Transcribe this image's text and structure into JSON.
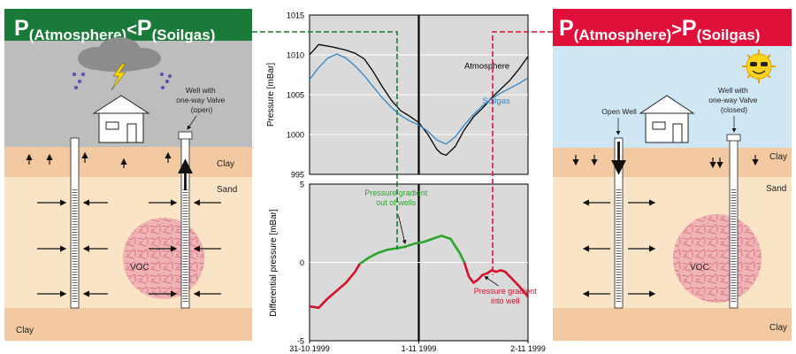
{
  "left_panel": {
    "title": {
      "p": "P",
      "a": "(Atmosphere)",
      "op": "<",
      "p2": "P",
      "b": "(Soilgas)"
    },
    "valve_label": [
      "Well with",
      "one-way Valve",
      "(open)"
    ],
    "labels": {
      "clay_top": "Clay",
      "sand": "Sand",
      "voc": "VOC",
      "clay_bottom": "Clay"
    },
    "colors": {
      "title_bg": "#1a7a3a",
      "sky": "#bdbdbd"
    },
    "icons": [
      "storm-cloud-icon",
      "lightning-icon",
      "rain-icon",
      "house-icon"
    ]
  },
  "right_panel": {
    "title": {
      "p": "P",
      "a": "(Atmosphere)",
      "op": ">",
      "p2": "P",
      "b": "(Soilgas)"
    },
    "open_well_label": "Open Well",
    "valve_label": [
      "Well with",
      "one-way Valve",
      "(closed)"
    ],
    "labels": {
      "clay_top": "Clay",
      "sand": "Sand",
      "voc": "VOC",
      "clay_bottom": "Clay"
    },
    "colors": {
      "title_bg": "#e0103a",
      "sky": "#cfe6f5"
    },
    "icons": [
      "sun-icon",
      "house-icon"
    ]
  },
  "chart_data": [
    {
      "type": "line",
      "ylabel": "Pressure [mBar]",
      "ylim": [
        995,
        1015
      ],
      "yticks": [
        995,
        1000,
        1005,
        1010,
        1015
      ],
      "xlim": [
        "1999-10-31",
        "1999-11-02"
      ],
      "grid": true,
      "series": [
        {
          "name": "Atmosphere",
          "color": "#000000",
          "x": [
            "1999-10-31T00:00",
            "1999-10-31T02:00",
            "1999-10-31T05:00",
            "1999-10-31T08:00",
            "1999-10-31T10:00",
            "1999-10-31T12:00",
            "1999-10-31T14:00",
            "1999-10-31T16:00",
            "1999-10-31T18:00",
            "1999-10-31T20:00",
            "1999-10-31T22:00",
            "1999-11-01T00:00",
            "1999-11-01T02:00",
            "1999-11-01T04:00",
            "1999-11-01T05:00",
            "1999-11-01T06:00",
            "1999-11-01T08:00",
            "1999-11-01T10:00",
            "1999-11-01T12:00",
            "1999-11-01T14:00",
            "1999-11-01T16:00",
            "1999-11-01T18:00",
            "1999-11-01T20:00",
            "1999-11-01T22:00",
            "1999-11-02T00:00"
          ],
          "y": [
            1010.0,
            1011.3,
            1011.0,
            1010.6,
            1010.2,
            1009.5,
            1007.9,
            1006.0,
            1004.3,
            1003.0,
            1002.3,
            1001.5,
            1000.0,
            998.1,
            997.6,
            997.4,
            998.5,
            1000.6,
            1002.2,
            1003.3,
            1004.6,
            1005.7,
            1006.8,
            1008.2,
            1009.8
          ]
        },
        {
          "name": "Soilgas",
          "color": "#2f86c8",
          "x": [
            "1999-10-31T00:00",
            "1999-10-31T02:00",
            "1999-10-31T04:00",
            "1999-10-31T06:00",
            "1999-10-31T08:00",
            "1999-10-31T10:00",
            "1999-10-31T12:00",
            "1999-10-31T14:00",
            "1999-10-31T16:00",
            "1999-10-31T18:00",
            "1999-10-31T20:00",
            "1999-10-31T22:00",
            "1999-11-01T00:00",
            "1999-11-01T02:00",
            "1999-11-01T04:00",
            "1999-11-01T06:00",
            "1999-11-01T08:00",
            "1999-11-01T10:00",
            "1999-11-01T12:00",
            "1999-11-01T14:00",
            "1999-11-01T16:00",
            "1999-11-01T18:00",
            "1999-11-01T20:00",
            "1999-11-01T22:00",
            "1999-11-02T00:00"
          ],
          "y": [
            1006.9,
            1008.4,
            1009.6,
            1010.1,
            1009.6,
            1008.6,
            1007.4,
            1006.0,
            1004.6,
            1003.4,
            1002.4,
            1001.7,
            1001.2,
            1000.4,
            999.3,
            998.8,
            999.7,
            1001.2,
            1002.5,
            1003.6,
            1004.5,
            1005.2,
            1005.8,
            1006.4,
            1007.1
          ]
        }
      ],
      "annotations": [
        {
          "text": "Atmosphere",
          "x": "1999-11-01T10:00",
          "y": 1008.3
        },
        {
          "text": "Soilgas",
          "x": "1999-11-01T14:00",
          "y": 1003.9
        }
      ]
    },
    {
      "type": "line",
      "ylabel": "Differential pressure [mBar]",
      "ylim": [
        -5,
        5
      ],
      "yticks": [
        -5,
        0,
        5
      ],
      "xlim": [
        "1999-10-31",
        "1999-11-02"
      ],
      "xticks": [
        "1999-10-31",
        "1999-11-01",
        "1999-11-02"
      ],
      "xticklabels": [
        "31-10 1999",
        "1-11 1999",
        "2-11 1999"
      ],
      "grid": true,
      "series": [
        {
          "name": "",
          "color": "#d6102b",
          "x": [
            "1999-10-31T00:00",
            "1999-10-31T02:00",
            "1999-10-31T04:00",
            "1999-10-31T06:00",
            "1999-10-31T08:00",
            "1999-10-31T10:00",
            "1999-10-31T11:00"
          ],
          "y": [
            -2.8,
            -2.9,
            -2.3,
            -1.8,
            -1.3,
            -0.6,
            -0.1
          ]
        },
        {
          "name": "",
          "color": "#2aa52a",
          "x": [
            "1999-10-31T11:00",
            "1999-10-31T13:00",
            "1999-10-31T15:00",
            "1999-10-31T17:00",
            "1999-10-31T19:00",
            "1999-10-31T21:00",
            "1999-10-31T23:00",
            "1999-11-01T01:00",
            "1999-11-01T03:00",
            "1999-11-01T05:00",
            "1999-11-01T07:00",
            "1999-11-01T09:00",
            "1999-11-01T10:00"
          ],
          "y": [
            -0.1,
            0.3,
            0.6,
            0.8,
            0.9,
            1.0,
            1.2,
            1.3,
            1.5,
            1.7,
            1.5,
            0.6,
            0.0
          ]
        },
        {
          "name": "",
          "color": "#d6102b",
          "x": [
            "1999-11-01T10:00",
            "1999-11-01T11:00",
            "1999-11-01T12:00",
            "1999-11-01T13:00",
            "1999-11-01T14:00",
            "1999-11-01T15:00",
            "1999-11-01T16:00",
            "1999-11-01T17:00",
            "1999-11-01T18:00",
            "1999-11-01T19:00",
            "1999-11-01T20:00",
            "1999-11-01T22:00",
            "1999-11-02T00:00"
          ],
          "y": [
            0.0,
            -0.9,
            -1.3,
            -1.1,
            -0.8,
            -0.7,
            -0.5,
            -0.6,
            -0.5,
            -0.6,
            -0.9,
            -1.5,
            -2.2
          ]
        }
      ],
      "annotations": [
        {
          "text": [
            "Pressure gradient",
            "out of wells"
          ],
          "x": "1999-10-31T19:00",
          "y": 2.3
        },
        {
          "text": [
            "Pressure gradient",
            "into well"
          ],
          "x": "1999-11-01T19:00",
          "y": -2.0
        }
      ]
    }
  ]
}
